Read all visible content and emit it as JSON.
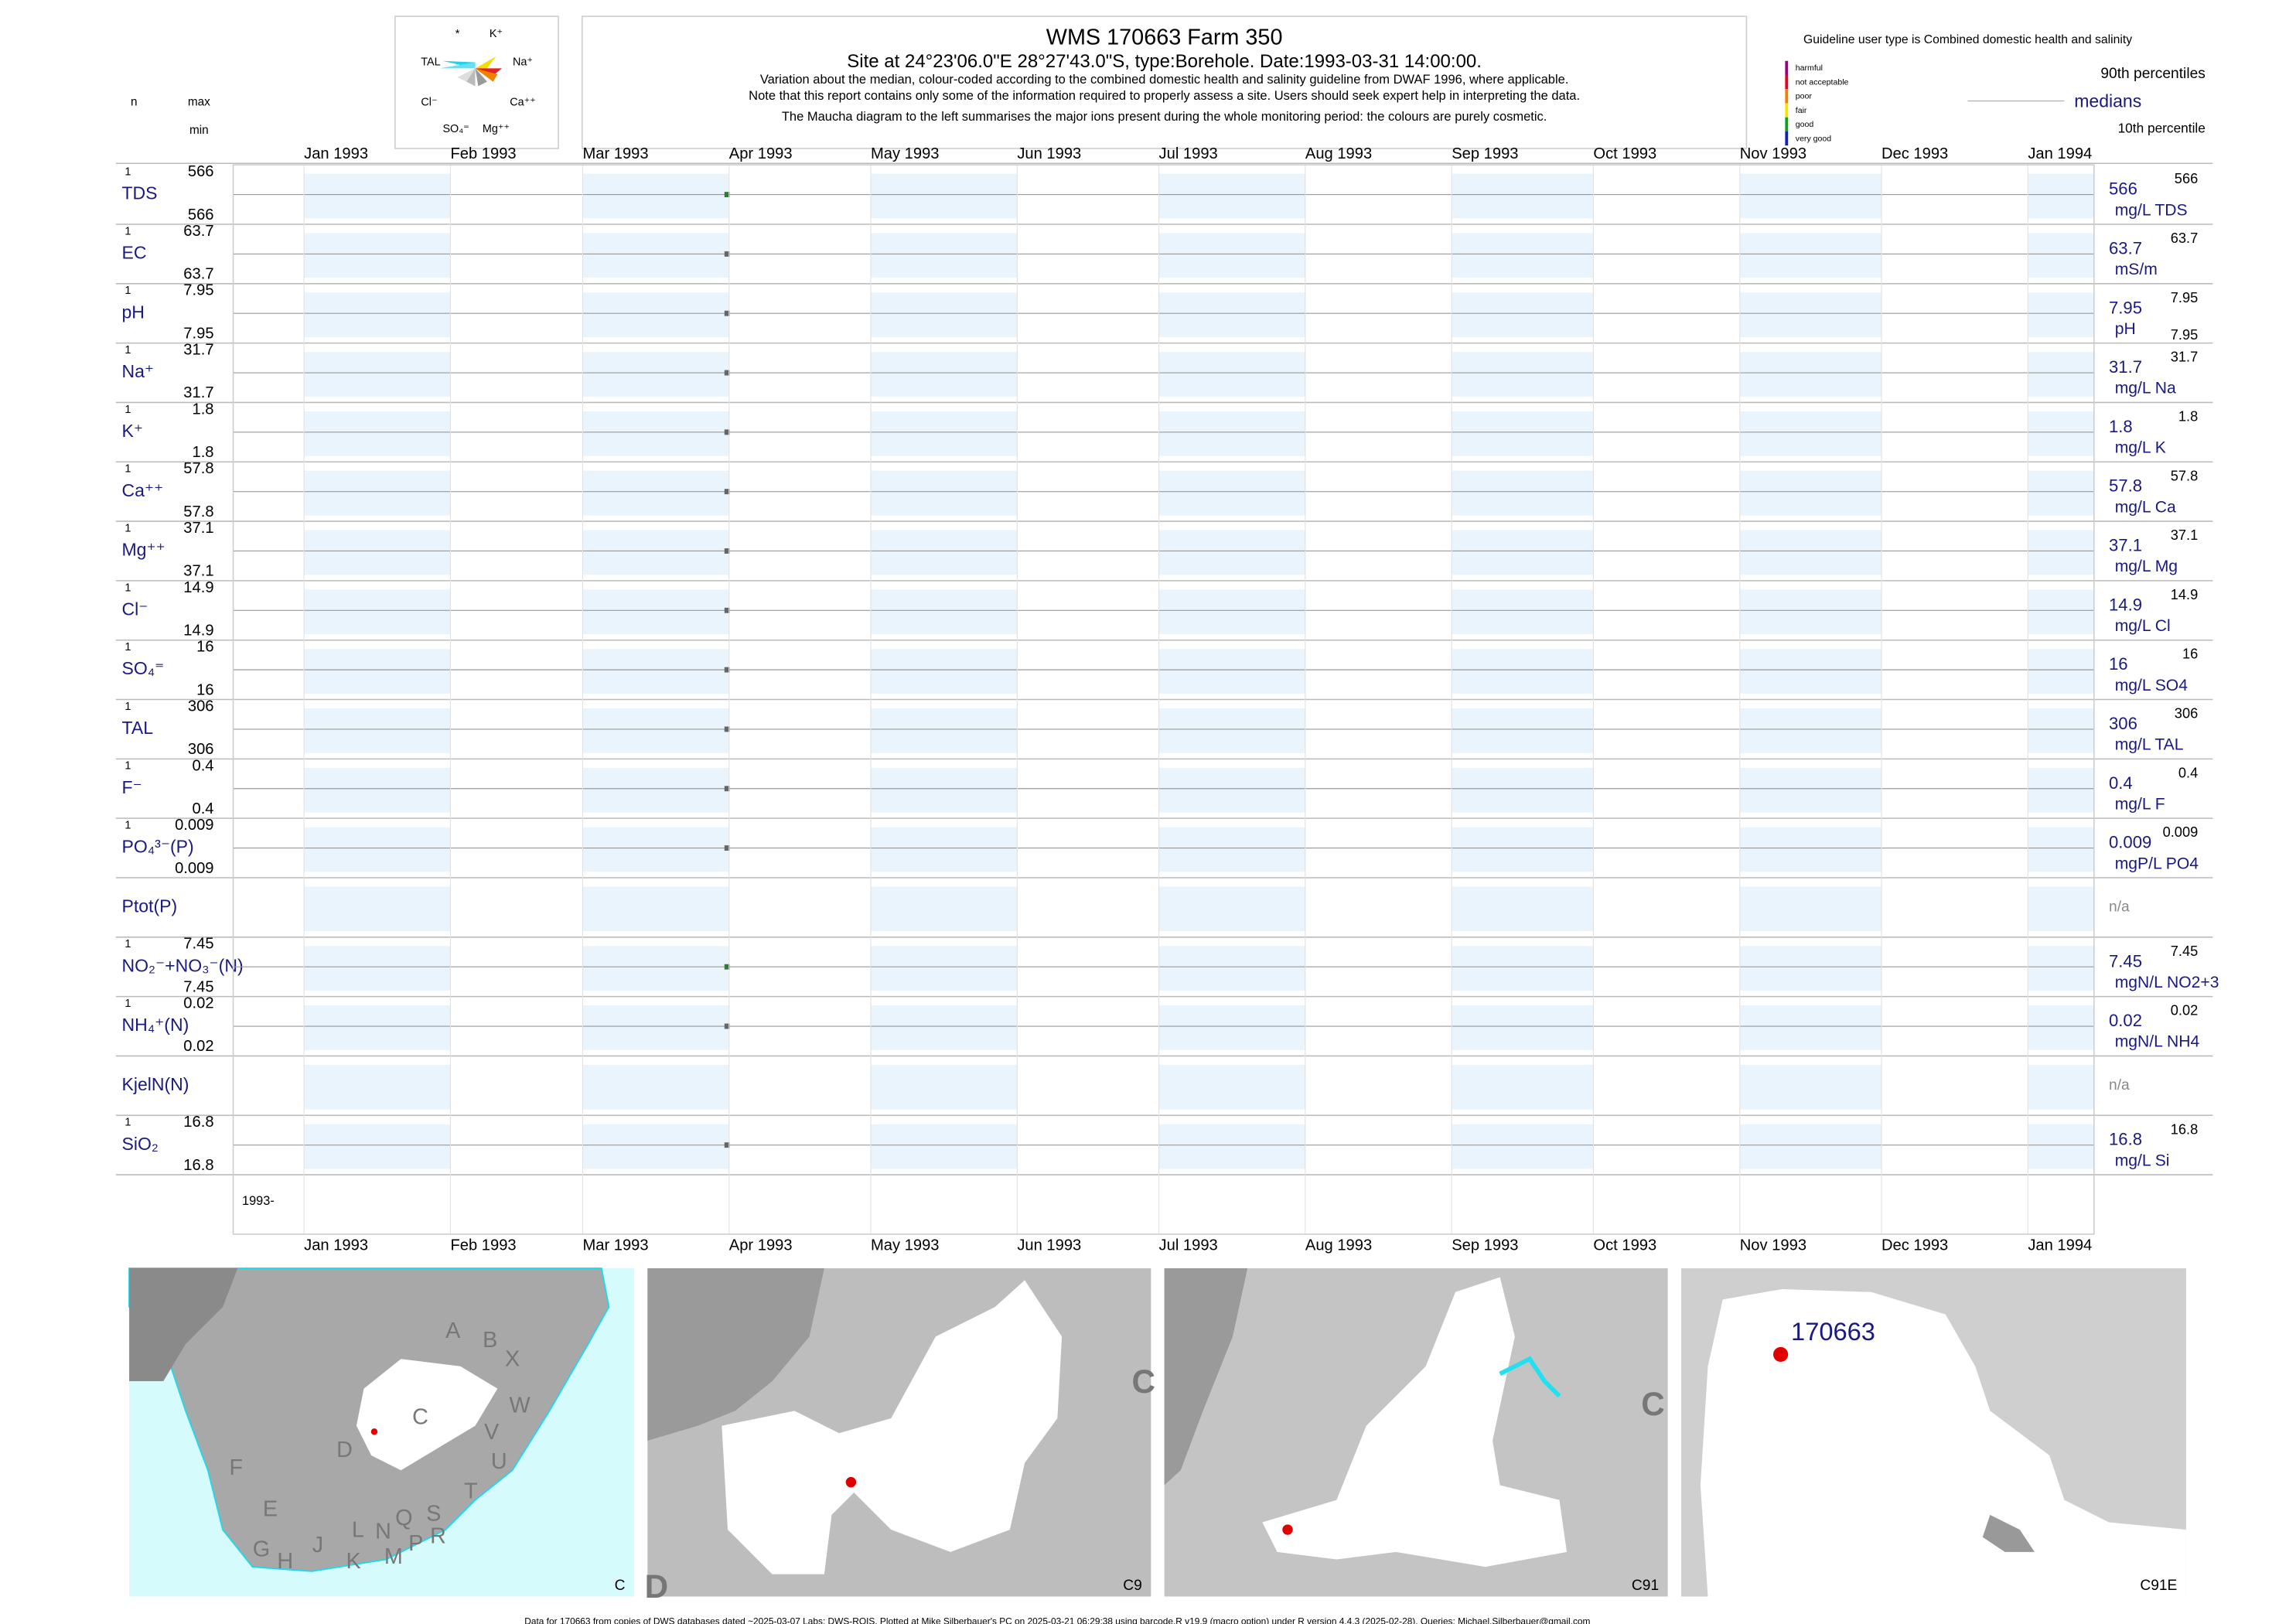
{
  "chart_data": {
    "type": "strip",
    "title": "WMS 170663  Farm 350",
    "subtitle": "Site at 24°23'06.0\"E 28°27'43.0\"S, type:Borehole. Date:1993-03-31 14:00:00.",
    "notes": [
      "Variation about the median,  colour-coded according to the combined domestic health and salinity guideline from DWAF 1996, where applicable.",
      "Note that this report contains only some of the information required to properly assess a site. Users should seek expert help in interpreting the data.",
      "The Maucha diagram to the left summarises the major ions present during the whole monitoring period: the colours are purely cosmetic."
    ],
    "maucha_labels": [
      "*",
      "K⁺",
      "TAL",
      "Na⁺",
      "Cl⁻",
      "Ca⁺⁺",
      "SO₄⁼",
      "Mg⁺⁺"
    ],
    "guideline": "Guideline user type is Combined domestic health and salinity",
    "classes": [
      {
        "name": "harmful",
        "color": "#a0007a"
      },
      {
        "name": "not acceptable",
        "color": "#e8001c"
      },
      {
        "name": "poor",
        "color": "#f08000"
      },
      {
        "name": "fair",
        "color": "#f2e600"
      },
      {
        "name": "good",
        "color": "#10a020"
      },
      {
        "name": "very good",
        "color": "#1020c0"
      }
    ],
    "legend_labels": [
      "90th percentiles",
      "medians",
      "10th percentile"
    ],
    "column_headers": [
      "n",
      "max",
      "min"
    ],
    "xlim": [
      "1992-12-17",
      "1994-01-15"
    ],
    "xticks": [
      {
        "value": "1993-01",
        "label": "Jan 1993"
      },
      {
        "value": "1993-02",
        "label": "Feb 1993"
      },
      {
        "value": "1993-03",
        "label": "Mar 1993"
      },
      {
        "value": "1993-04",
        "label": "Apr 1993"
      },
      {
        "value": "1993-05",
        "label": "May 1993"
      },
      {
        "value": "1993-06",
        "label": "Jun 1993"
      },
      {
        "value": "1993-07",
        "label": "Jul 1993"
      },
      {
        "value": "1993-08",
        "label": "Aug 1993"
      },
      {
        "value": "1993-09",
        "label": "Sep 1993"
      },
      {
        "value": "1993-10",
        "label": "Oct 1993"
      },
      {
        "value": "1993-11",
        "label": "Nov 1993"
      },
      {
        "value": "1993-12",
        "label": "Dec 1993"
      },
      {
        "value": "1994-01",
        "label": "Jan 1994"
      }
    ],
    "sample_date": "1993-03-31 14:00:00",
    "period_label": "1993-",
    "rows": [
      {
        "name": "TDS",
        "n": 1,
        "max": 566,
        "min": 566,
        "median": 566,
        "unit": "mg/L TDS",
        "p90": 566,
        "color": "#2e7d32"
      },
      {
        "name": "EC",
        "n": 1,
        "max": 63.7,
        "min": 63.7,
        "median": 63.7,
        "unit": "mS/m",
        "p90": 63.7,
        "color": "#666666"
      },
      {
        "name": "pH",
        "n": 1,
        "max": 7.95,
        "min": 7.95,
        "median": 7.95,
        "unit": "pH",
        "p90": 7.95,
        "p10": 7.95,
        "color": "#666666"
      },
      {
        "name": "Na⁺",
        "n": 1,
        "max": 31.7,
        "min": 31.7,
        "median": 31.7,
        "unit": "mg/L Na",
        "p90": 31.7,
        "color": "#666666"
      },
      {
        "name": "K⁺",
        "n": 1,
        "max": 1.8,
        "min": 1.8,
        "median": 1.8,
        "unit": "mg/L K",
        "p90": 1.8,
        "color": "#666666"
      },
      {
        "name": "Ca⁺⁺",
        "n": 1,
        "max": 57.8,
        "min": 57.8,
        "median": 57.8,
        "unit": "mg/L Ca",
        "p90": 57.8,
        "color": "#666666"
      },
      {
        "name": "Mg⁺⁺",
        "n": 1,
        "max": 37.1,
        "min": 37.1,
        "median": 37.1,
        "unit": "mg/L Mg",
        "p90": 37.1,
        "color": "#666666"
      },
      {
        "name": "Cl⁻",
        "n": 1,
        "max": 14.9,
        "min": 14.9,
        "median": 14.9,
        "unit": "mg/L Cl",
        "p90": 14.9,
        "color": "#666666"
      },
      {
        "name": "SO₄⁼",
        "n": 1,
        "max": 16,
        "min": 16,
        "median": 16,
        "unit": "mg/L SO4",
        "p90": 16,
        "color": "#666666"
      },
      {
        "name": "TAL",
        "n": 1,
        "max": 306,
        "min": 306,
        "median": 306,
        "unit": "mg/L TAL",
        "p90": 306,
        "color": "#666666"
      },
      {
        "name": "F⁻",
        "n": 1,
        "max": 0.4,
        "min": 0.4,
        "median": 0.4,
        "unit": "mg/L F",
        "p90": 0.4,
        "color": "#666666"
      },
      {
        "name": "PO₄³⁻(P)",
        "n": 1,
        "max": 0.009,
        "min": 0.009,
        "median": 0.009,
        "unit": "mgP/L PO4",
        "p90": 0.009,
        "color": "#666666"
      },
      {
        "name": "Ptot(P)",
        "status": "n/a"
      },
      {
        "name": "NO₂⁻+NO₃⁻(N)",
        "n": 1,
        "max": 7.45,
        "min": 7.45,
        "median": 7.45,
        "unit": "mgN/L NO2+3",
        "p90": 7.45,
        "color": "#2e7d32"
      },
      {
        "name": "NH₄⁺(N)",
        "n": 1,
        "max": 0.02,
        "min": 0.02,
        "median": 0.02,
        "unit": "mgN/L NH4",
        "p90": 0.02,
        "color": "#666666"
      },
      {
        "name": "KjelN(N)",
        "status": "n/a"
      },
      {
        "name": "SiO₂",
        "n": 1,
        "max": 16.8,
        "min": 16.8,
        "median": 16.8,
        "unit": "mg/L Si",
        "p90": 16.8,
        "color": "#666666"
      }
    ],
    "maps": [
      {
        "label": "C",
        "regions": [
          "A",
          "B",
          "X",
          "W",
          "C",
          "D",
          "V",
          "U",
          "T",
          "F",
          "E",
          "G",
          "H",
          "J",
          "K",
          "L",
          "N",
          "M",
          "Q",
          "P",
          "S",
          "R"
        ]
      },
      {
        "label": "C9",
        "regions": [
          "C",
          "D"
        ]
      },
      {
        "label": "C91",
        "regions": [
          "C"
        ]
      },
      {
        "label": "C91E",
        "regions": [
          "170663"
        ]
      }
    ],
    "footer": "Data for 170663 from copies of DWS databases dated ~2025-03-07 Labs: DWS-RQIS. Plotted at Mike Silberbauer's PC on 2025-03-21 06:29:38 using barcode.R v19.9 (macro option) under R version 4.4.3 (2025-02-28). Queries: Michael.Silberbauer@gmail.com"
  }
}
